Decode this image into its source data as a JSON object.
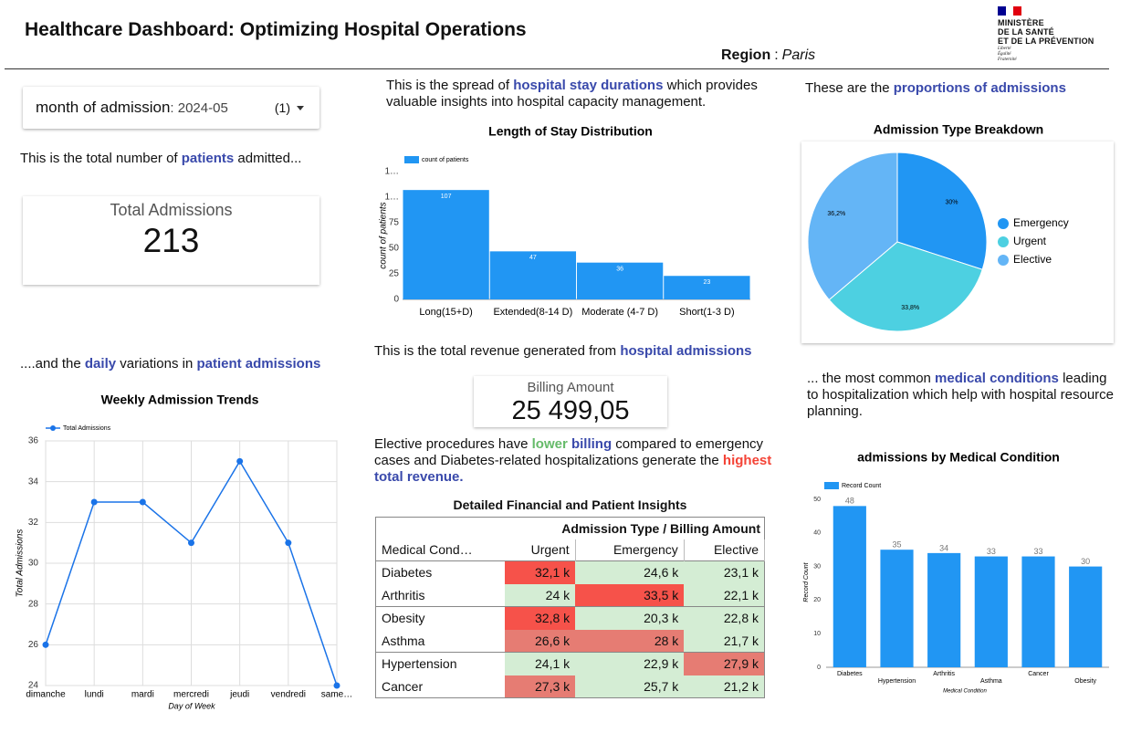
{
  "header": {
    "title": "Healthcare Dashboard: Optimizing Hospital Operations",
    "region_label": "Region",
    "region_separator": ":",
    "region_value": "Paris",
    "logo_lines": [
      "MINISTÈRE",
      "DE LA SANTÉ",
      "ET DE LA PRÉVENTION"
    ],
    "motto_lines": [
      "Liberté",
      "Égalité",
      "Fraternité"
    ]
  },
  "filter": {
    "label": "month of admission",
    "value": ": 2024-05",
    "count": "(1)"
  },
  "texts": [
    {
      "segments": [
        {
          "text": "This is the total number of "
        },
        {
          "text": "patients",
          "style": "blue"
        },
        {
          "text": " admitted..."
        }
      ]
    },
    {
      "segments": [
        {
          "text": "....and the "
        },
        {
          "text": "daily",
          "style": "blue"
        },
        {
          "text": " variations in "
        },
        {
          "text": "patient admissions",
          "style": "blue"
        }
      ]
    },
    {
      "segments": [
        {
          "text": "This is the spread of "
        },
        {
          "text": "hospital stay durations",
          "style": "blue"
        },
        {
          "text": " which provides valuable insights into hospital capacity management."
        }
      ]
    },
    {
      "segments": [
        {
          "text": "This is the total revenue generated from "
        },
        {
          "text": "hospital admissions",
          "style": "blue"
        }
      ]
    },
    {
      "segments": [
        {
          "text": "Elective procedures have "
        },
        {
          "text": "lower",
          "style": "green"
        },
        {
          "text": " "
        },
        {
          "text": "billing",
          "style": "blue"
        },
        {
          "text": " compared to emergency cases and Diabetes-related hospitalizations generate the "
        },
        {
          "text": "highest",
          "style": "red"
        },
        {
          "text": " "
        },
        {
          "text": "total revenue.",
          "style": "blue"
        }
      ]
    },
    {
      "segments": [
        {
          "text": "These are the "
        },
        {
          "text": "proportions of admissions",
          "style": "blue"
        }
      ]
    },
    {
      "segments": [
        {
          "text": "... the most common "
        },
        {
          "text": "medical conditions",
          "style": "blue"
        },
        {
          "text": " leading to hospitalization which help with hospital resource planning."
        }
      ]
    }
  ],
  "kpis": [
    {
      "label": "Total Admissions",
      "value": 213
    },
    {
      "label": "Billing Amount",
      "value": 25499.05,
      "value_label": "25 499,05"
    }
  ],
  "chart_data": [
    {
      "type": "line",
      "title": "Weekly Admission Trends",
      "categories": [
        "dimanche",
        "lundi",
        "mardi",
        "mercredi",
        "jeudi",
        "vendredi",
        "same…"
      ],
      "series": [
        {
          "name": "Total Admissions",
          "color": "#1a73e8",
          "values": [
            26,
            33,
            33,
            31,
            35,
            31,
            24
          ]
        }
      ],
      "x_label": "Day of Week",
      "y_label": "Total Admissions",
      "ylim": [
        24,
        36
      ],
      "yticks": [
        24,
        26,
        28,
        30,
        32,
        34,
        36
      ],
      "grid": true
    },
    {
      "type": "bar",
      "title": "Length of Stay Distribution",
      "categories": [
        "Long(15+D)",
        "Extended(8-14 D)",
        "Moderate (4-7 D)",
        "Short(1-3 D)"
      ],
      "series": [
        {
          "name": "count of patients",
          "color": "#2196f3",
          "values": [
            107,
            47,
            36,
            23
          ]
        }
      ],
      "y_label": "count of patients",
      "ylim": [
        0,
        125
      ],
      "yticks": [
        0,
        25,
        50,
        75,
        {
          "value": 100,
          "label": "1…"
        },
        {
          "value": 125,
          "label": "1…"
        }
      ],
      "grid": false
    },
    {
      "type": "pie",
      "title": "Admission Type Breakdown",
      "categories": [
        "Emergency",
        "Urgent",
        "Elective"
      ],
      "values": [
        30,
        33.8,
        36.2
      ],
      "value_labels": [
        "30%",
        "33,8%",
        "36,2%"
      ],
      "colors": [
        "#2196f3",
        "#4dd0e1",
        "#64b5f6"
      ],
      "legend": "right"
    },
    {
      "type": "bar",
      "title": "admissions by Medical Condition",
      "categories": [
        "Diabetes",
        "Hypertension",
        "Arthritis",
        "Asthma",
        "Cancer",
        "Obesity"
      ],
      "series": [
        {
          "name": "Record Count",
          "color": "#2196f3",
          "values": [
            48,
            35,
            34,
            33,
            33,
            30
          ]
        }
      ],
      "x_label": "Medical Condition",
      "y_label": "Record Count",
      "ylim": [
        0,
        50
      ],
      "yticks": [
        0,
        10,
        20,
        30,
        40,
        50
      ],
      "grid": false
    }
  ],
  "table": {
    "title": "Detailed Financial and Patient Insights",
    "group_header": "Admission Type / Billing Amount",
    "columns": [
      "Medical Cond…",
      "Urgent",
      "Emergency",
      "Elective"
    ],
    "rows": [
      {
        "cells": [
          "Diabetes",
          "32,1 k",
          "24,6 k",
          "23,1 k"
        ],
        "colors": [
          "#f6524a",
          "#d4edd4",
          "#d4edd4"
        ]
      },
      {
        "cells": [
          "Arthritis",
          "24 k",
          "33,5 k",
          "22,1 k"
        ],
        "colors": [
          "#d4edd4",
          "#f6524a",
          "#d4edd4"
        ]
      },
      {
        "cells": [
          "Obesity",
          "32,8 k",
          "20,3 k",
          "22,8 k"
        ],
        "colors": [
          "#f6524a",
          "#d4edd4",
          "#d4edd4"
        ]
      },
      {
        "cells": [
          "Asthma",
          "26,6 k",
          "28 k",
          "21,7 k"
        ],
        "colors": [
          "#e67c73",
          "#e67c73",
          "#d4edd4"
        ]
      },
      {
        "cells": [
          "Hypertension",
          "24,1 k",
          "22,9 k",
          "27,9 k"
        ],
        "colors": [
          "#d4edd4",
          "#d4edd4",
          "#e67c73"
        ]
      },
      {
        "cells": [
          "Cancer",
          "27,3 k",
          "25,7 k",
          "21,2 k"
        ],
        "colors": [
          "#e67c73",
          "#d4edd4",
          "#d4edd4"
        ]
      }
    ]
  }
}
